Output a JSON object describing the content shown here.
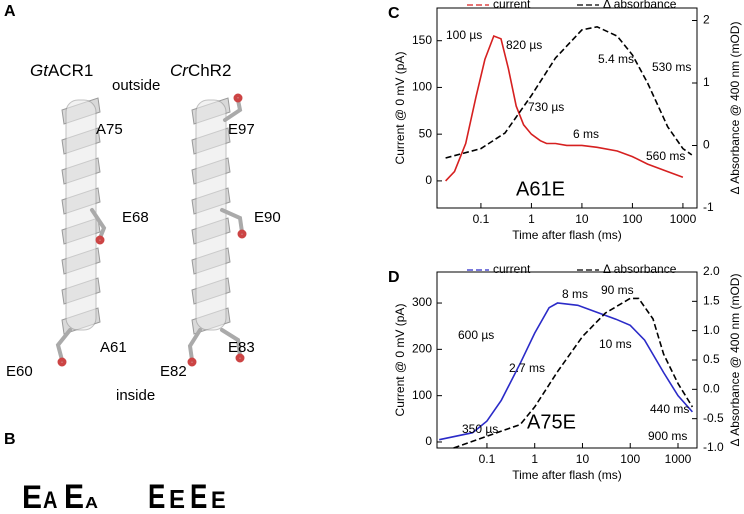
{
  "figure": {
    "panel_a": {
      "label": "A",
      "outside": "outside",
      "inside": "inside",
      "proteins": [
        {
          "name_italic": "Gt",
          "name": "ACR1",
          "residues": [
            {
              "label": "A75",
              "color": "#2b2bc8"
            },
            {
              "label": "E68",
              "color": "#000000"
            },
            {
              "label": "A61",
              "color": "#d62020"
            },
            {
              "label": "E60",
              "color": "#000000"
            }
          ]
        },
        {
          "name_italic": "Cr",
          "name": "ChR2",
          "residues": [
            {
              "label": "E97",
              "color": "#2b2bc8"
            },
            {
              "label": "E90",
              "color": "#000000"
            },
            {
              "label": "E83",
              "color": "#d62020"
            },
            {
              "label": "E82",
              "color": "#000000"
            }
          ]
        }
      ]
    },
    "panel_b": {
      "label": "B",
      "logos": [
        [
          {
            "letter": "E",
            "color": "#9b1c1c"
          },
          {
            "letter": "A",
            "color": "#000000"
          },
          {
            "letter": "E",
            "color": "#9b1c1c"
          },
          {
            "letter": "A",
            "color": "#000000"
          }
        ],
        [
          {
            "letter": "E",
            "color": "#9b1c1c"
          },
          {
            "letter": "E",
            "color": "#9b1c1c"
          },
          {
            "letter": "E",
            "color": "#9b1c1c"
          },
          {
            "letter": "E",
            "color": "#9b1c1c"
          }
        ]
      ]
    }
  },
  "chart_data": [
    {
      "type": "line",
      "panel_label": "C",
      "annotation": "A61E",
      "annotation_color": "#d62020",
      "xlabel": "Time after flash (ms)",
      "ylabel": "Current @ 0 mV (pA)",
      "ylabel_color": "#d62020",
      "y2label": "Δ Absorbance @ 400 nm (mOD)",
      "xscale": "log",
      "xlim": [
        0.0135,
        1900
      ],
      "xticks": [
        0.1,
        1,
        10,
        100,
        1000
      ],
      "ylim": [
        -29,
        185
      ],
      "yticks": [
        0,
        50,
        100,
        150
      ],
      "y2lim": [
        -1,
        2.2
      ],
      "y2ticks": [
        -1,
        0,
        1,
        2
      ],
      "series": [
        {
          "name": "current",
          "color": "#d62020",
          "x": [
            0.02,
            0.03,
            0.05,
            0.08,
            0.12,
            0.18,
            0.25,
            0.35,
            0.5,
            0.7,
            1,
            1.5,
            2,
            3,
            5,
            10,
            20,
            50,
            100,
            200,
            500,
            1000
          ],
          "values": [
            0,
            10,
            40,
            90,
            130,
            155,
            152,
            120,
            80,
            60,
            50,
            43,
            40,
            40,
            38,
            38,
            36,
            32,
            26,
            18,
            10,
            4
          ]
        },
        {
          "name": "Δ absorbance",
          "color": "#000000",
          "axis": "y2",
          "dash": true,
          "x": [
            0.02,
            0.1,
            0.3,
            1,
            3,
            10,
            20,
            50,
            100,
            200,
            500,
            1000,
            1500
          ],
          "values": [
            -0.2,
            -0.05,
            0.2,
            0.8,
            1.4,
            1.85,
            1.9,
            1.75,
            1.45,
            1.0,
            0.3,
            -0.05,
            -0.15
          ]
        }
      ],
      "labels": [
        {
          "text": "100 µs",
          "color": "#d62020"
        },
        {
          "text": "820 µs",
          "color": "#d62020"
        },
        {
          "text": "5.4 ms",
          "color": "#000000"
        },
        {
          "text": "530 ms",
          "color": "#000000"
        },
        {
          "text": "730 µs",
          "color": "#000000"
        },
        {
          "text": "6 ms",
          "color": "#d62020"
        },
        {
          "text": "560 ms",
          "color": "#d62020"
        }
      ]
    },
    {
      "type": "line",
      "panel_label": "D",
      "annotation": "A75E",
      "annotation_color": "#2b2bc8",
      "xlabel": "Time after flash (ms)",
      "ylabel": "Current @ 0 mV (pA)",
      "ylabel_color": "#2b2bc8",
      "y2label": "Δ Absorbance @ 400 nm (mOD)",
      "xscale": "log",
      "xlim": [
        0.009,
        2500
      ],
      "xticks": [
        0.1,
        1,
        10,
        100,
        1000
      ],
      "ylim": [
        -13,
        367
      ],
      "yticks": [
        0,
        100,
        200,
        300
      ],
      "y2lim": [
        -1.0,
        2.0
      ],
      "y2ticks": [
        {
          "value": -1.0,
          "label": "-1.0"
        },
        {
          "value": -0.5,
          "label": "-0.5"
        },
        {
          "value": 0.0,
          "label": "0.0"
        },
        {
          "value": 0.5,
          "label": "0.5"
        },
        {
          "value": 1.0,
          "label": "1.0"
        },
        {
          "value": 1.5,
          "label": "1.5"
        },
        {
          "value": 2.0,
          "label": "2.0"
        }
      ],
      "series": [
        {
          "name": "current",
          "color": "#2b2bc8",
          "x": [
            0.01,
            0.05,
            0.1,
            0.2,
            0.5,
            1,
            2,
            3,
            8,
            20,
            50,
            100,
            200,
            500,
            1000,
            2000
          ],
          "values": [
            5,
            20,
            45,
            90,
            170,
            235,
            290,
            300,
            295,
            280,
            265,
            252,
            220,
            150,
            100,
            65
          ]
        },
        {
          "name": "Δ absorbance",
          "color": "#000000",
          "axis": "y2",
          "dash": true,
          "x": [
            0.02,
            0.5,
            1,
            3,
            10,
            30,
            100,
            150,
            300,
            500,
            1000,
            2000
          ],
          "values": [
            -1.0,
            -0.6,
            -0.3,
            0.3,
            0.9,
            1.3,
            1.55,
            1.55,
            1.2,
            0.6,
            0.1,
            -0.3
          ]
        }
      ],
      "labels": [
        {
          "text": "600 µs",
          "color": "#2b2bc8"
        },
        {
          "text": "8 ms",
          "color": "#2b2bc8"
        },
        {
          "text": "90 ms",
          "color": "#000000"
        },
        {
          "text": "10 ms",
          "color": "#000000"
        },
        {
          "text": "2.7 ms",
          "color": "#000000"
        },
        {
          "text": "440 ms",
          "color": "#2b2bc8"
        },
        {
          "text": "900 ms",
          "color": "#000000"
        },
        {
          "text": "350 µs",
          "color": "#000000"
        }
      ]
    }
  ]
}
